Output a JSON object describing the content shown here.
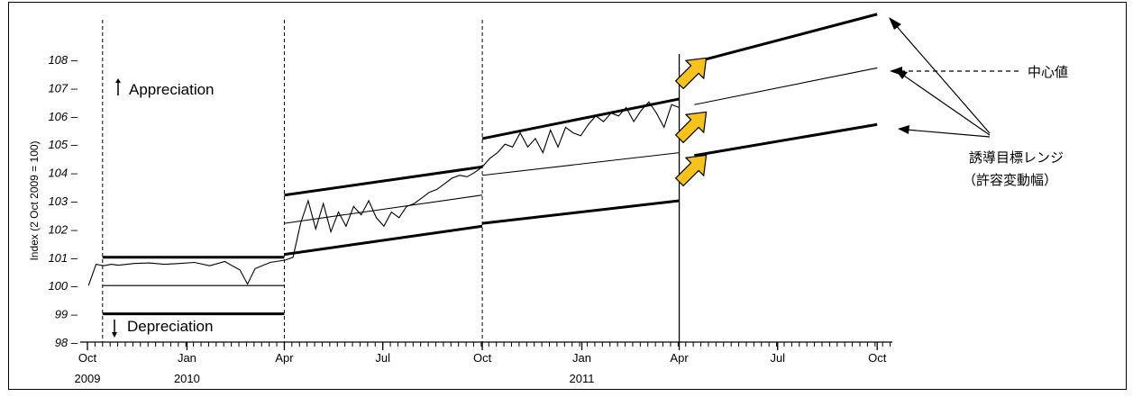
{
  "chart_data": {
    "type": "line",
    "title": "",
    "ylabel": "Index (2 Oct 2009 = 100)",
    "xlabel": "",
    "ylim": [
      98,
      108
    ],
    "yticks": [
      98,
      99,
      100,
      101,
      102,
      103,
      104,
      105,
      106,
      107,
      108
    ],
    "ytick_labels": [
      "98",
      "99",
      "100",
      "101",
      "102",
      "103",
      "104",
      "105",
      "106",
      "107",
      "108"
    ],
    "xlim": [
      "2009-10-01",
      "2011-10-15"
    ],
    "xticks": [
      {
        "date": "2009-10-01",
        "label": "Oct",
        "year": "2009"
      },
      {
        "date": "2010-01-01",
        "label": "Jan",
        "year": "2010"
      },
      {
        "date": "2010-04-01",
        "label": "Apr",
        "year": ""
      },
      {
        "date": "2010-07-01",
        "label": "Jul",
        "year": ""
      },
      {
        "date": "2010-10-01",
        "label": "Oct",
        "year": ""
      },
      {
        "date": "2011-01-01",
        "label": "Jan",
        "year": "2011"
      },
      {
        "date": "2011-04-01",
        "label": "Apr",
        "year": ""
      },
      {
        "date": "2011-07-01",
        "label": "Jul",
        "year": ""
      },
      {
        "date": "2011-10-01",
        "label": "Oct",
        "year": ""
      }
    ],
    "grid": false,
    "series": [
      {
        "x": [
          "2009-10-02",
          "2009-10-09",
          "2009-10-16",
          "2009-10-23",
          "2009-10-30",
          "2009-11-13",
          "2009-11-27",
          "2009-12-11",
          "2009-12-25",
          "2010-01-08",
          "2010-01-22",
          "2010-02-05",
          "2010-02-19",
          "2010-02-26",
          "2010-03-05",
          "2010-03-19",
          "2010-04-02",
          "2010-04-09",
          "2010-04-16",
          "2010-04-23",
          "2010-04-30",
          "2010-05-07",
          "2010-05-14",
          "2010-05-21",
          "2010-05-28",
          "2010-06-04",
          "2010-06-11",
          "2010-06-18",
          "2010-06-25",
          "2010-07-02",
          "2010-07-09",
          "2010-07-16",
          "2010-07-23",
          "2010-07-30",
          "2010-08-06",
          "2010-08-13",
          "2010-08-20",
          "2010-08-27",
          "2010-09-03",
          "2010-09-10",
          "2010-09-17",
          "2010-09-24",
          "2010-10-01",
          "2010-10-08",
          "2010-10-15",
          "2010-10-22",
          "2010-10-29",
          "2010-11-05",
          "2010-11-12",
          "2010-11-19",
          "2010-11-26",
          "2010-12-03",
          "2010-12-10",
          "2010-12-17",
          "2010-12-24",
          "2010-12-31",
          "2011-01-07",
          "2011-01-14",
          "2011-01-21",
          "2011-01-28",
          "2011-02-04",
          "2011-02-11",
          "2011-02-18",
          "2011-02-25",
          "2011-03-04",
          "2011-03-11",
          "2011-03-18",
          "2011-03-25",
          "2011-04-01"
        ],
        "values": [
          100.0,
          100.75,
          100.7,
          100.75,
          100.72,
          100.78,
          100.8,
          100.75,
          100.78,
          100.82,
          100.7,
          100.85,
          100.55,
          100.05,
          100.6,
          100.82,
          100.9,
          101.0,
          102.2,
          103.0,
          102.0,
          102.9,
          101.9,
          102.6,
          102.1,
          102.8,
          102.5,
          103.0,
          102.4,
          102.1,
          102.6,
          102.4,
          102.8,
          102.9,
          103.1,
          103.3,
          103.4,
          103.6,
          103.8,
          103.9,
          103.85,
          104.0,
          104.2,
          104.5,
          104.7,
          105.0,
          104.9,
          105.4,
          104.9,
          105.2,
          104.7,
          105.5,
          104.9,
          105.6,
          105.4,
          105.3,
          105.7,
          106.0,
          105.8,
          106.1,
          106.0,
          106.3,
          105.8,
          106.2,
          106.5,
          106.1,
          105.6,
          106.4,
          106.3
        ]
      }
    ],
    "bands": [
      {
        "start": "2009-10-15",
        "end": "2010-04-01",
        "upper": [
          101.0,
          101.0
        ],
        "center": [
          100.0,
          100.0
        ],
        "lower": [
          99.0,
          99.0
        ]
      },
      {
        "start": "2010-04-01",
        "end": "2010-10-01",
        "upper": [
          103.2,
          104.2
        ],
        "center": [
          102.2,
          103.2
        ],
        "lower": [
          101.1,
          102.1
        ]
      },
      {
        "start": "2010-10-01",
        "end": "2011-04-01",
        "upper": [
          105.2,
          106.6
        ],
        "center": [
          103.9,
          104.7
        ],
        "lower": [
          102.2,
          103.0
        ]
      },
      {
        "start": "2011-04-15",
        "end": "2011-10-01",
        "upper": [
          107.9,
          109.6
        ],
        "center": [
          106.4,
          107.7
        ],
        "lower": [
          104.6,
          105.7
        ]
      }
    ],
    "regime_changes": [
      "2009-10-15",
      "2010-04-01",
      "2010-10-01"
    ],
    "current_date": "2011-04-01",
    "annotations": {
      "appreciation": "Appreciation",
      "depreciation": "Depreciation",
      "center_label": "中心値",
      "band_label_line1": "誘導目標レンジ",
      "band_label_line2": "（許容変動幅）"
    },
    "colors": {
      "line": "#000000",
      "arrow_fill": "#f7c31a",
      "arrow_stroke": "#000000"
    }
  }
}
